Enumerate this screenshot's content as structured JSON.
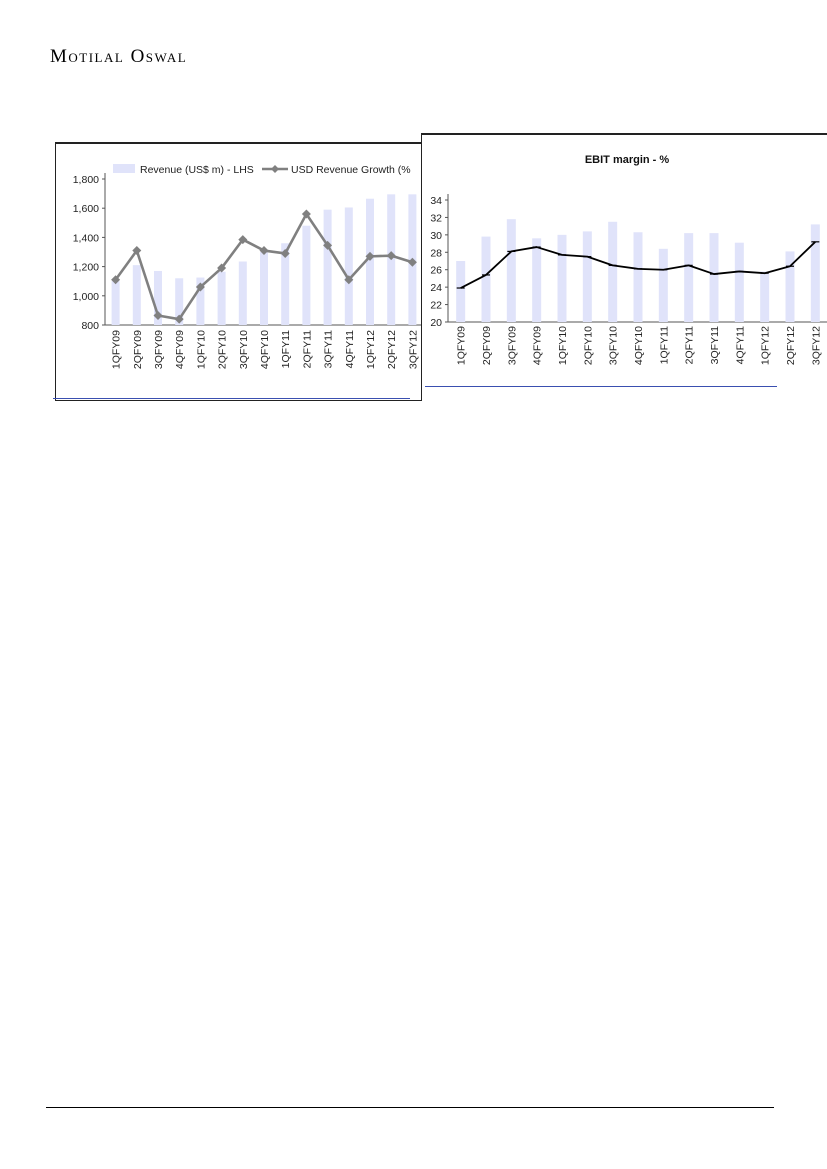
{
  "brand": "Motilal Oswal",
  "colors": {
    "bar_fill": "#e0e3fa",
    "left_line": "#808080",
    "right_line": "#000000"
  },
  "chart_data": [
    {
      "type": "bar",
      "title": "",
      "legend": {
        "position": "top",
        "entries": [
          "Revenue (US$ m) - LHS",
          "USD Revenue Growth (%"
        ]
      },
      "categories": [
        "1QFY09",
        "2QFY09",
        "3QFY09",
        "4QFY09",
        "1QFY10",
        "2QFY10",
        "3QFY10",
        "4QFY10",
        "1QFY11",
        "2QFY11",
        "3QFY11",
        "4QFY11",
        "1QFY12",
        "2QFY12",
        "3QFY12"
      ],
      "y_ticks": [
        "800",
        "1,000",
        "1,200",
        "1,400",
        "1,600",
        "1,800"
      ],
      "ylim": [
        800,
        1800
      ],
      "series": [
        {
          "name": "Revenue (US$ m) - LHS",
          "type": "bar",
          "values": [
            1100,
            1210,
            1170,
            1120,
            1125,
            1165,
            1235,
            1300,
            1360,
            1480,
            1590,
            1605,
            1665,
            1695,
            1695
          ]
        },
        {
          "name": "USD Revenue Growth (%",
          "type": "line",
          "marker": "diamond",
          "values": [
            1110,
            1310,
            865,
            840,
            1060,
            1190,
            1385,
            1310,
            1290,
            1560,
            1345,
            1110,
            1270,
            1275,
            1230
          ]
        }
      ]
    },
    {
      "type": "bar",
      "title": "EBIT margin - %",
      "categories": [
        "1QFY09",
        "2QFY09",
        "3QFY09",
        "4QFY09",
        "1QFY10",
        "2QFY10",
        "3QFY10",
        "4QFY10",
        "1QFY11",
        "2QFY11",
        "3QFY11",
        "4QFY11",
        "1QFY12",
        "2QFY12",
        "3QFY12"
      ],
      "y_ticks": [
        "20",
        "22",
        "24",
        "26",
        "28",
        "30",
        "32",
        "34"
      ],
      "ylim": [
        20,
        34
      ],
      "series": [
        {
          "type": "bar",
          "values": [
            27.0,
            29.8,
            31.8,
            29.6,
            30.0,
            30.4,
            31.5,
            30.3,
            28.4,
            30.2,
            30.2,
            29.1,
            25.8,
            28.1,
            31.2
          ]
        },
        {
          "type": "line",
          "values": [
            23.9,
            25.4,
            28.1,
            28.6,
            27.7,
            27.5,
            26.5,
            26.1,
            26.0,
            26.5,
            25.5,
            25.8,
            25.6,
            26.4,
            29.2
          ]
        }
      ]
    }
  ]
}
